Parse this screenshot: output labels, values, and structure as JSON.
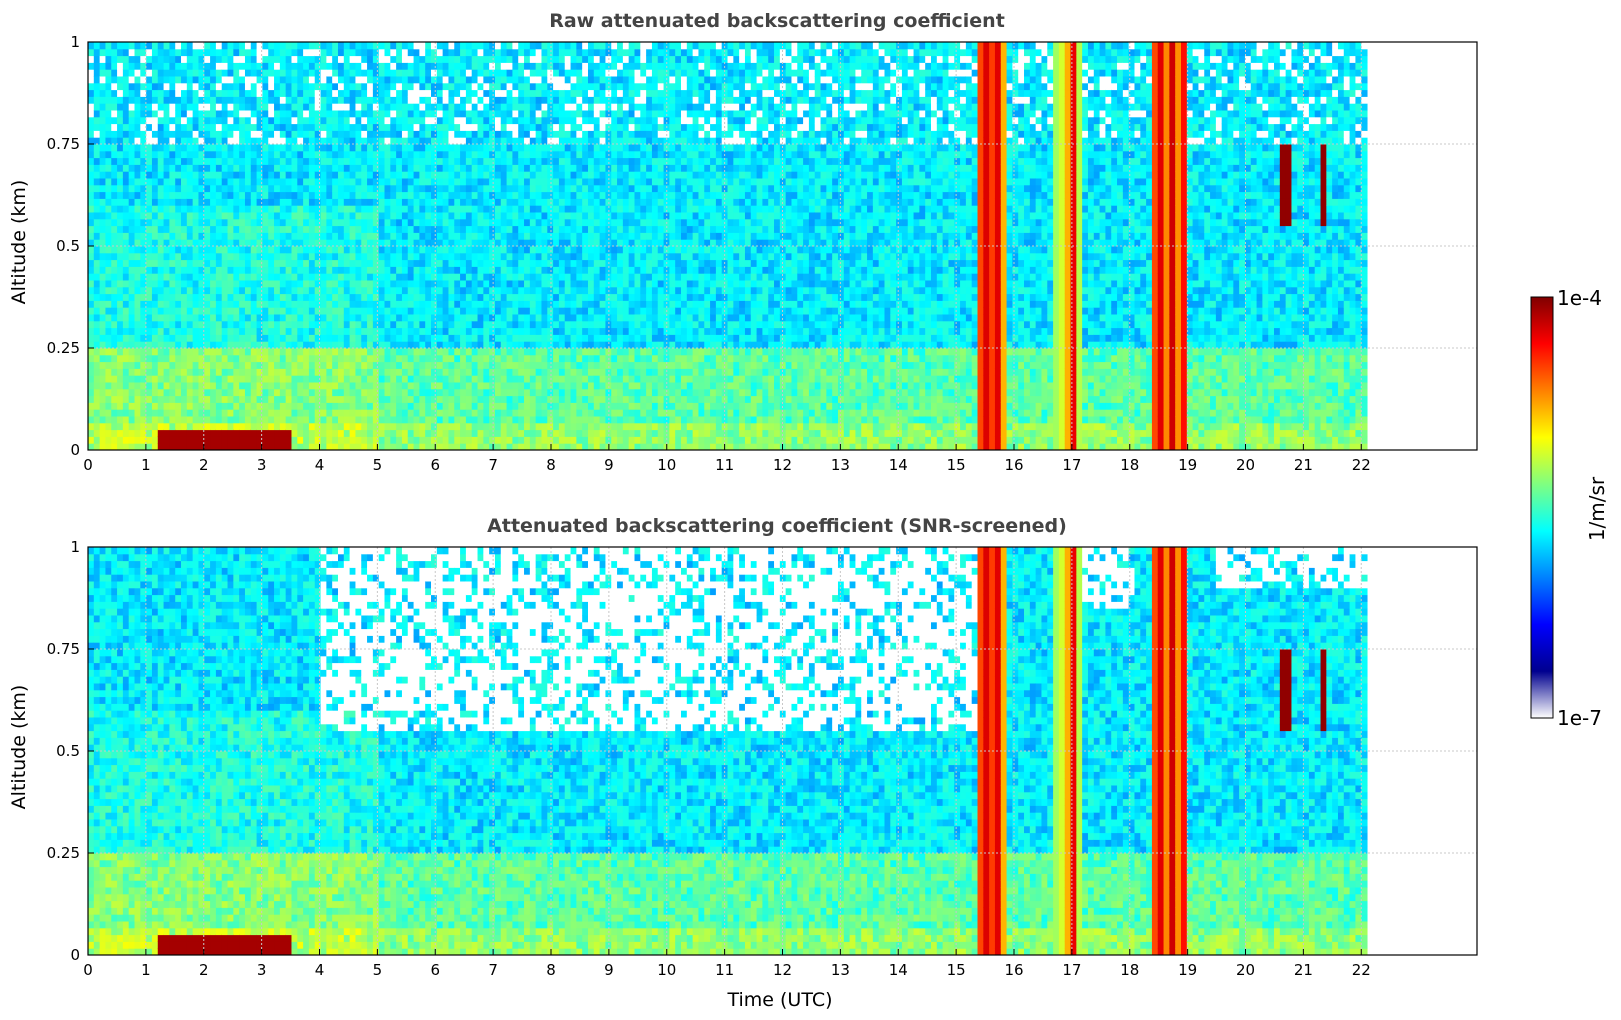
{
  "colors": {
    "background": "#ffffff",
    "title_text": "#444444",
    "grid": "#c8c8c8",
    "colormap": [
      "#ffffff",
      "#00008f",
      "#0000ff",
      "#0080ff",
      "#00ffff",
      "#80ff80",
      "#ffff00",
      "#ff8000",
      "#ff0000",
      "#800000"
    ]
  },
  "colorbar": {
    "label": "1/m/sr",
    "min_label": "1e-7",
    "max_label": "1e-4",
    "min": 1e-07,
    "max": 0.0001,
    "scale": "log"
  },
  "chart_data": [
    {
      "type": "heatmap",
      "title": "Raw attenuated backscattering coefficient",
      "xlabel": "",
      "ylabel": "Altitude (km)",
      "xlim": [
        0,
        24
      ],
      "ylim": [
        0,
        1
      ],
      "data_extent_x": [
        0,
        22.1
      ],
      "x_ticks": [
        "0",
        "1",
        "2",
        "3",
        "4",
        "5",
        "6",
        "7",
        "8",
        "9",
        "10",
        "11",
        "12",
        "13",
        "14",
        "15",
        "16",
        "17",
        "18",
        "19",
        "20",
        "21",
        "22"
      ],
      "y_ticks": [
        "0",
        "0.25",
        "0.5",
        "0.75",
        "1"
      ],
      "grid": true,
      "log_scale_color": true,
      "features": {
        "background_level": 2e-06,
        "boundary_layer_top_km": 0.25,
        "high_returns_near_surface": [
          [
            1.2,
            3.5
          ]
        ],
        "vertical_signal_bands": [
          [
            15.4,
            15.9
          ],
          [
            16.7,
            17.2
          ],
          [
            18.4,
            19.0
          ]
        ],
        "local_clouds": [
          [
            20.6,
            20.8
          ],
          [
            21.3,
            21.4
          ]
        ]
      }
    },
    {
      "type": "heatmap",
      "title": "Attenuated backscattering coefficient (SNR-screened)",
      "xlabel": "Time (UTC)",
      "ylabel": "Altitude (km)",
      "xlim": [
        0,
        24
      ],
      "ylim": [
        0,
        1
      ],
      "data_extent_x": [
        0,
        22.1
      ],
      "x_ticks": [
        "0",
        "1",
        "2",
        "3",
        "4",
        "5",
        "6",
        "7",
        "8",
        "9",
        "10",
        "11",
        "12",
        "13",
        "14",
        "15",
        "16",
        "17",
        "18",
        "19",
        "20",
        "21",
        "22"
      ],
      "y_ticks": [
        "0",
        "0.25",
        "0.5",
        "0.75",
        "1"
      ],
      "grid": true,
      "log_scale_color": true,
      "features": {
        "background_level": 2e-06,
        "boundary_layer_top_km": 0.25,
        "high_returns_near_surface": [
          [
            1.2,
            3.5
          ]
        ],
        "vertical_signal_bands": [
          [
            15.4,
            15.9
          ],
          [
            16.7,
            17.2
          ],
          [
            18.4,
            19.0
          ]
        ],
        "local_clouds": [
          [
            20.6,
            20.8
          ],
          [
            21.3,
            21.4
          ]
        ],
        "screened_regions": [
          {
            "x": [
              4.0,
              15.4
            ],
            "y_min": 0.55
          },
          {
            "x": [
              17.2,
              18.1
            ],
            "y_min": 0.85
          },
          {
            "x": [
              19.5,
              22.1
            ],
            "y_min": 0.9
          }
        ]
      }
    }
  ]
}
